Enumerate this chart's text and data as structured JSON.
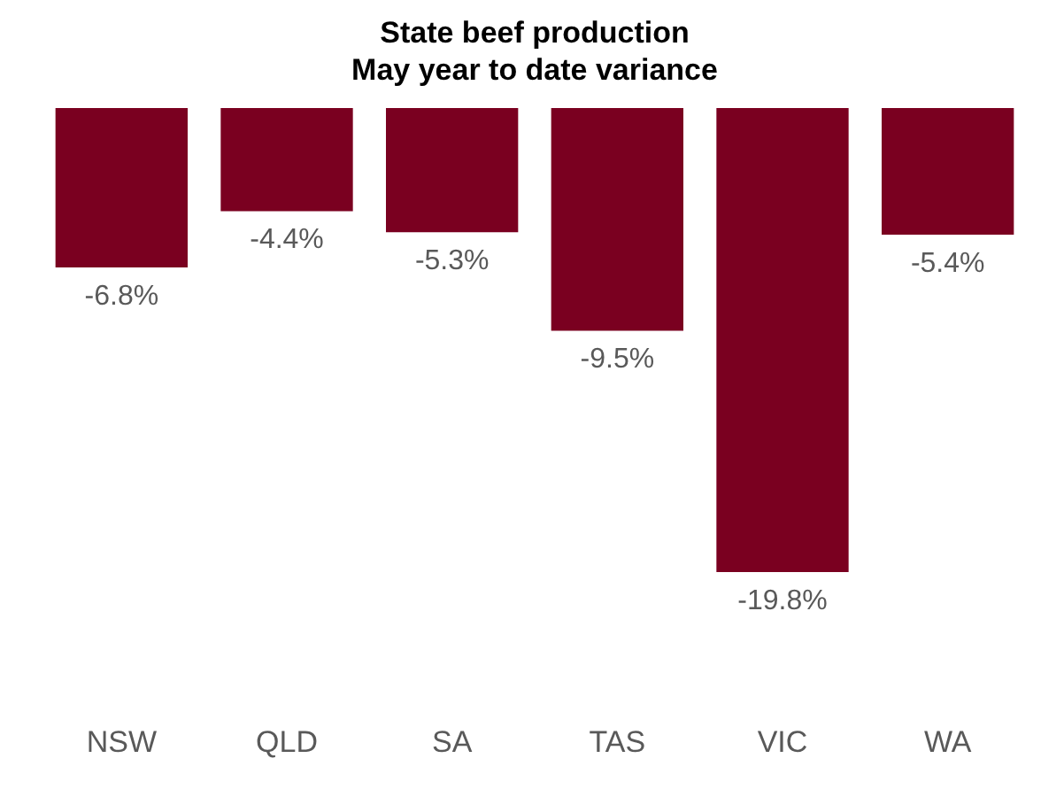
{
  "chart_data": {
    "type": "bar",
    "title": "State beef production",
    "subtitle": "May year to date variance",
    "categories": [
      "NSW",
      "QLD",
      "SA",
      "TAS",
      "VIC",
      "WA"
    ],
    "values": [
      -6.8,
      -4.4,
      -5.3,
      -9.5,
      -19.8,
      -5.4
    ],
    "value_labels": [
      "-6.8%",
      "-4.4%",
      "-5.3%",
      "-9.5%",
      "-19.8%",
      "-5.4%"
    ],
    "color": "#7a0020",
    "tick_labels": "x",
    "grid": false
  }
}
